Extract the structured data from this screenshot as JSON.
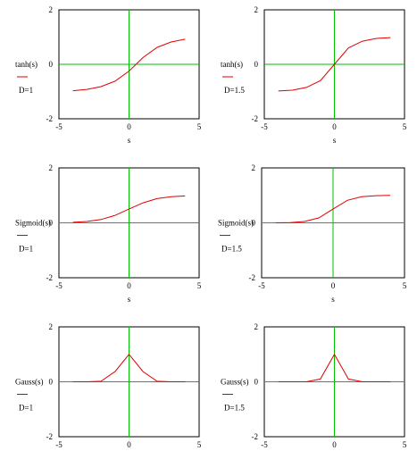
{
  "colors": {
    "curve": "#e00000",
    "axis": "#00c000",
    "frame": "#000000",
    "legend_line": "#e00000"
  },
  "chart_data": [
    {
      "type": "line",
      "func_label": "tanh(s)",
      "param_label": "D=1",
      "xlabel": "s",
      "xlim": [
        -5,
        5
      ],
      "ylim": [
        -2,
        2
      ],
      "x_ticks": [
        "-5",
        "0",
        "5"
      ],
      "y_ticks": [
        "2",
        "0",
        "-2"
      ],
      "grid": false,
      "series": [
        {
          "x": [
            -4,
            -3,
            -2,
            -1,
            0,
            1,
            2,
            3,
            4
          ],
          "y": [
            -0.97,
            -0.92,
            -0.82,
            -0.62,
            -0.25,
            0.25,
            0.62,
            0.82,
            0.92
          ]
        }
      ]
    },
    {
      "type": "line",
      "func_label": "tanh(s)",
      "param_label": "D=1.5",
      "xlabel": "s",
      "xlim": [
        -5,
        5
      ],
      "ylim": [
        -2,
        2
      ],
      "x_ticks": [
        "-5",
        "0",
        "5"
      ],
      "y_ticks": [
        "2",
        "0",
        "-2"
      ],
      "grid": false,
      "series": [
        {
          "x": [
            -4,
            -3,
            -2,
            -1,
            0,
            1,
            2,
            3,
            4
          ],
          "y": [
            -0.98,
            -0.95,
            -0.85,
            -0.6,
            0,
            0.6,
            0.85,
            0.95,
            0.98
          ]
        }
      ]
    },
    {
      "type": "line",
      "func_label": "Sigmoid(s)",
      "param_label": "D=1",
      "xlabel": "s",
      "xlim": [
        -5,
        5
      ],
      "ylim": [
        -2,
        2
      ],
      "x_ticks": [
        "-5",
        "0",
        "5"
      ],
      "y_ticks": [
        "2",
        "0",
        "-2"
      ],
      "grid": false,
      "series": [
        {
          "x": [
            -4,
            -3,
            -2,
            -1,
            0,
            1,
            2,
            3,
            4
          ],
          "y": [
            0.02,
            0.05,
            0.12,
            0.27,
            0.5,
            0.73,
            0.88,
            0.95,
            0.98
          ]
        }
      ]
    },
    {
      "type": "line",
      "func_label": "Sigmoid(s)",
      "param_label": "D=1.5",
      "xlabel": "s",
      "xlim": [
        -5,
        5
      ],
      "ylim": [
        -2,
        2
      ],
      "x_ticks": [
        "-5",
        "0",
        "5"
      ],
      "y_ticks": [
        "2",
        "0",
        "-2"
      ],
      "grid": false,
      "series": [
        {
          "x": [
            -4,
            -3,
            -2,
            -1,
            0,
            1,
            2,
            3,
            4
          ],
          "y": [
            0,
            0.01,
            0.05,
            0.18,
            0.5,
            0.82,
            0.95,
            0.99,
            1.0
          ]
        }
      ]
    },
    {
      "type": "line",
      "func_label": "Gauss(s)",
      "param_label": "D=1",
      "xlabel": "",
      "xlim": [
        -5,
        5
      ],
      "ylim": [
        -2,
        2
      ],
      "x_ticks": [
        "-5",
        "0",
        "5"
      ],
      "y_ticks": [
        "2",
        "0",
        "-2"
      ],
      "grid": false,
      "series": [
        {
          "x": [
            -4,
            -3,
            -2,
            -1,
            0,
            1,
            2,
            3,
            4
          ],
          "y": [
            0,
            0,
            0.02,
            0.37,
            1.0,
            0.37,
            0.02,
            0,
            0
          ]
        }
      ]
    },
    {
      "type": "line",
      "func_label": "Gauss(s)",
      "param_label": "D=1.5",
      "xlabel": "",
      "xlim": [
        -5,
        5
      ],
      "ylim": [
        -2,
        2
      ],
      "x_ticks": [
        "-5",
        "0",
        "5"
      ],
      "y_ticks": [
        "2",
        "0",
        "-2"
      ],
      "grid": false,
      "series": [
        {
          "x": [
            -4,
            -3,
            -2,
            -1,
            0,
            1,
            2,
            3,
            4
          ],
          "y": [
            0,
            0,
            0,
            0.1,
            1.0,
            0.1,
            0,
            0,
            0
          ]
        }
      ]
    }
  ]
}
